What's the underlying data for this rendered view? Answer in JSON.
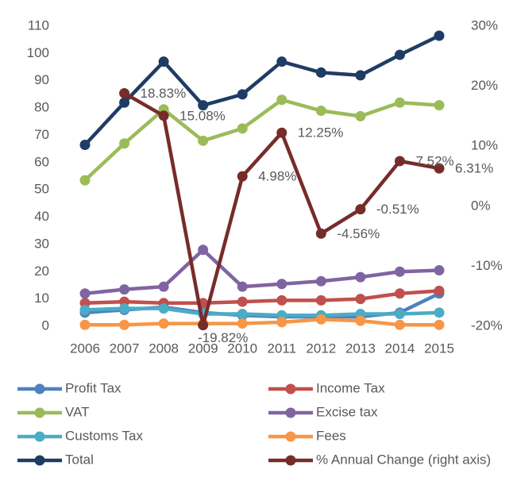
{
  "chart_data": {
    "type": "line",
    "categories": [
      "2006",
      "2007",
      "2008",
      "2009",
      "2010",
      "2011",
      "2012",
      "2013",
      "2014",
      "2015"
    ],
    "ylim": [
      0,
      110
    ],
    "yticks": [
      0,
      10,
      20,
      30,
      40,
      50,
      60,
      70,
      80,
      90,
      100,
      110
    ],
    "y2lim": [
      -20,
      30
    ],
    "y2ticks": [
      {
        "value": -20,
        "label": "-20%"
      },
      {
        "value": -10,
        "label": "-10%"
      },
      {
        "value": 0,
        "label": "0%"
      },
      {
        "value": 10,
        "label": "10%"
      },
      {
        "value": 20,
        "label": "20%"
      },
      {
        "value": 30,
        "label": "30%"
      }
    ],
    "series": [
      {
        "name": "Profit Tax",
        "color": "#4f81bd",
        "values": [
          5,
          6,
          7,
          5,
          4,
          3.5,
          3.5,
          3.5,
          5,
          12
        ]
      },
      {
        "name": "Income Tax",
        "color": "#c0504d",
        "values": [
          8.5,
          9,
          8.5,
          8.5,
          9,
          9.5,
          9.5,
          10,
          12,
          13
        ]
      },
      {
        "name": "VAT",
        "color": "#9bbb59",
        "values": [
          53.5,
          67,
          79.5,
          68,
          72.5,
          83,
          79,
          77,
          82,
          81
        ]
      },
      {
        "name": "Excise tax",
        "color": "#8064a2",
        "values": [
          12,
          13.5,
          14.5,
          28,
          14.5,
          15.5,
          16.5,
          18,
          20,
          20.5
        ]
      },
      {
        "name": "Customs Tax",
        "color": "#4bacc6",
        "values": [
          6,
          6.5,
          6.5,
          4.5,
          4.5,
          4,
          4,
          4.5,
          4.5,
          5
        ]
      },
      {
        "name": "Fees",
        "color": "#f79646",
        "values": [
          0.5,
          0.5,
          1,
          1,
          1,
          1.5,
          2.5,
          2,
          0.5,
          0.5
        ]
      },
      {
        "name": "Total",
        "color": "#1f3c64",
        "values": [
          66.5,
          82,
          97,
          81,
          85,
          97,
          93,
          92,
          99.5,
          106.5
        ]
      },
      {
        "name": "% Annual Change (right axis)",
        "color": "#772c2a",
        "axis": "y2",
        "values": [
          null,
          18.83,
          15.08,
          -19.82,
          4.98,
          12.25,
          -4.56,
          -0.51,
          7.52,
          6.31
        ],
        "value_labels": [
          null,
          "18.83%",
          "15.08%",
          "-19.82%",
          "4.98%",
          "12.25%",
          "-4.56%",
          "-0.51%",
          "7.52%",
          "6.31%"
        ]
      }
    ]
  }
}
